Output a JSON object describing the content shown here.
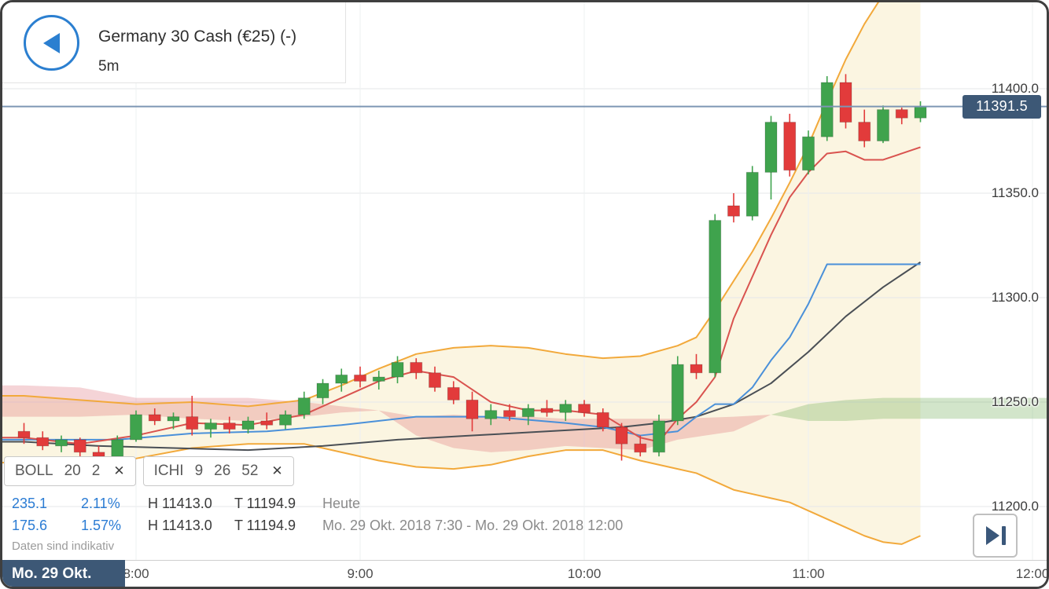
{
  "header": {
    "title": "Germany 30 Cash (€25) (-)",
    "timeframe": "5m"
  },
  "icons": {
    "back": "left-arrow",
    "close": "✕",
    "step_forward": "play-to-end"
  },
  "indicators": [
    {
      "name": "BOLL",
      "params": [
        "20",
        "2"
      ]
    },
    {
      "name": "ICHI",
      "params": [
        "9",
        "26",
        "52"
      ]
    }
  ],
  "stats": {
    "rows": [
      {
        "change": "235.1",
        "change_pct": "2.11%",
        "high": "H 11413.0",
        "low": "T 11194.9",
        "period": "Heute"
      },
      {
        "change": "175.6",
        "change_pct": "1.57%",
        "high": "H 11413.0",
        "low": "T 11194.9",
        "period": "Mo. 29 Okt. 2018 7:30 - Mo. 29 Okt. 2018 12:00"
      }
    ]
  },
  "disclaimer": "Daten sind indikativ",
  "time_axis": {
    "date_badge": "Mo. 29 Okt.",
    "labels": [
      {
        "text": "8:00",
        "minute": 480
      },
      {
        "text": "9:00",
        "minute": 540
      },
      {
        "text": "10:00",
        "minute": 600
      },
      {
        "text": "11:00",
        "minute": 660
      },
      {
        "text": "12:00",
        "minute": 720
      }
    ]
  },
  "price_axis": {
    "labels": [
      {
        "text": "11400.0",
        "price": 11400
      },
      {
        "text": "11350.0",
        "price": 11350
      },
      {
        "text": "11300.0",
        "price": 11300
      },
      {
        "text": "11250.0",
        "price": 11250
      },
      {
        "text": "11200.0",
        "price": 11200
      }
    ]
  },
  "colors": {
    "up": "#3fa34d",
    "down": "#e23b3b",
    "bollinger": "#f2a93b",
    "tenkan": "#d9534f",
    "kijun": "#4a90d9",
    "baseline": "#4a4f55",
    "cloud_bearish": "rgba(217,83,96,0.25)",
    "cloud_bullish": "rgba(106,168,79,0.30)",
    "band_fill": "rgba(248,236,200,0.55)",
    "price_line": "#7d96b4",
    "badge_bg": "#3d5876",
    "accent_blue": "#2b7fd0"
  },
  "chart_data": {
    "type": "candlestick",
    "title": "Germany 30 Cash (€25) 5m",
    "start_time": "7:30",
    "start_minute": 450,
    "interval_minutes": 5,
    "current_price": 11391.5,
    "x_ticks": [
      "8:00",
      "9:00",
      "10:00",
      "11:00",
      "12:00"
    ],
    "y_ticks": [
      11400,
      11350,
      11300,
      11250,
      11200
    ],
    "ylim": [
      11180,
      11410
    ],
    "grid": true,
    "candles": [
      [
        11236,
        11240,
        11230,
        11233
      ],
      [
        11233,
        11236,
        11227,
        11229
      ],
      [
        11229,
        11234,
        11226,
        11232
      ],
      [
        11232,
        11233,
        11224,
        11226
      ],
      [
        11226,
        11229,
        11221,
        11224
      ],
      [
        11224,
        11234,
        11223,
        11232
      ],
      [
        11232,
        11246,
        11231,
        11244
      ],
      [
        11244,
        11247,
        11239,
        11241
      ],
      [
        11241,
        11245,
        11237,
        11243
      ],
      [
        11243,
        11253,
        11234,
        11237
      ],
      [
        11237,
        11242,
        11233,
        11240
      ],
      [
        11240,
        11243,
        11235,
        11237
      ],
      [
        11237,
        11243,
        11235,
        11241
      ],
      [
        11241,
        11245,
        11237,
        11239
      ],
      [
        11239,
        11246,
        11237,
        11244
      ],
      [
        11244,
        11255,
        11242,
        11252
      ],
      [
        11252,
        11261,
        11249,
        11259
      ],
      [
        11259,
        11266,
        11255,
        11263
      ],
      [
        11263,
        11267,
        11257,
        11260
      ],
      [
        11260,
        11265,
        11256,
        11262
      ],
      [
        11262,
        11272,
        11259,
        11269
      ],
      [
        11269,
        11271,
        11261,
        11264
      ],
      [
        11264,
        11267,
        11255,
        11257
      ],
      [
        11257,
        11260,
        11249,
        11251
      ],
      [
        11251,
        11255,
        11236,
        11242
      ],
      [
        11242,
        11249,
        11239,
        11246
      ],
      [
        11246,
        11249,
        11241,
        11243
      ],
      [
        11243,
        11249,
        11239,
        11247
      ],
      [
        11247,
        11251,
        11243,
        11245
      ],
      [
        11245,
        11251,
        11241,
        11249
      ],
      [
        11249,
        11251,
        11243,
        11245
      ],
      [
        11245,
        11247,
        11236,
        11238
      ],
      [
        11238,
        11240,
        11222,
        11230
      ],
      [
        11230,
        11234,
        11224,
        11226
      ],
      [
        11226,
        11244,
        11224,
        11241
      ],
      [
        11241,
        11272,
        11239,
        11268
      ],
      [
        11268,
        11273,
        11261,
        11264
      ],
      [
        11264,
        11340,
        11262,
        11337
      ],
      [
        11344,
        11350,
        11336,
        11339
      ],
      [
        11339,
        11363,
        11337,
        11360
      ],
      [
        11360,
        11387,
        11347,
        11384
      ],
      [
        11384,
        11388,
        11358,
        11361
      ],
      [
        11361,
        11380,
        11359,
        11377
      ],
      [
        11377,
        11406,
        11375,
        11403
      ],
      [
        11403,
        11407,
        11381,
        11384
      ],
      [
        11384,
        11390,
        11372,
        11375
      ],
      [
        11375,
        11392,
        11374,
        11390
      ],
      [
        11390,
        11391,
        11383,
        11386
      ],
      [
        11386,
        11394,
        11384,
        11391.5
      ]
    ],
    "overlays": {
      "lines": [
        {
          "name": "bollinger-upper",
          "color_key": "bollinger",
          "width": 2,
          "extend_left": true,
          "points": [
            [
              0,
              11253
            ],
            [
              3,
              11251
            ],
            [
              6,
              11249
            ],
            [
              9,
              11250
            ],
            [
              12,
              11248
            ],
            [
              15,
              11251
            ],
            [
              17,
              11258
            ],
            [
              19,
              11266
            ],
            [
              21,
              11273
            ],
            [
              23,
              11276
            ],
            [
              25,
              11277
            ],
            [
              27,
              11276
            ],
            [
              29,
              11273
            ],
            [
              31,
              11271
            ],
            [
              33,
              11272
            ],
            [
              35,
              11277
            ],
            [
              36,
              11281
            ],
            [
              37,
              11294
            ],
            [
              38,
              11308
            ],
            [
              39,
              11322
            ],
            [
              40,
              11338
            ],
            [
              41,
              11355
            ],
            [
              42,
              11373
            ],
            [
              43,
              11394
            ],
            [
              44,
              11414
            ],
            [
              45,
              11431
            ],
            [
              46,
              11445
            ],
            [
              47,
              11456
            ],
            [
              48,
              11464
            ]
          ]
        },
        {
          "name": "bollinger-lower",
          "color_key": "bollinger",
          "width": 2,
          "extend_left": true,
          "points": [
            [
              0,
              11221
            ],
            [
              3,
              11220
            ],
            [
              6,
              11223
            ],
            [
              9,
              11228
            ],
            [
              12,
              11230
            ],
            [
              15,
              11230
            ],
            [
              17,
              11226
            ],
            [
              19,
              11222
            ],
            [
              21,
              11219
            ],
            [
              23,
              11218
            ],
            [
              25,
              11220
            ],
            [
              27,
              11224
            ],
            [
              29,
              11227
            ],
            [
              31,
              11227
            ],
            [
              33,
              11222
            ],
            [
              35,
              11218
            ],
            [
              36,
              11216
            ],
            [
              37,
              11212
            ],
            [
              38,
              11208
            ],
            [
              39,
              11206
            ],
            [
              40,
              11204
            ],
            [
              41,
              11202
            ],
            [
              42,
              11198
            ],
            [
              43,
              11194
            ],
            [
              44,
              11190
            ],
            [
              45,
              11186
            ],
            [
              46,
              11183
            ],
            [
              47,
              11182
            ],
            [
              48,
              11186
            ]
          ]
        },
        {
          "name": "ichimoku-baseline",
          "color_key": "baseline",
          "width": 2,
          "extend_left": true,
          "points": [
            [
              0,
              11231
            ],
            [
              4,
              11229
            ],
            [
              8,
              11228
            ],
            [
              12,
              11227
            ],
            [
              16,
              11229
            ],
            [
              20,
              11232
            ],
            [
              24,
              11234
            ],
            [
              28,
              11236
            ],
            [
              32,
              11238
            ],
            [
              34,
              11240
            ],
            [
              36,
              11243
            ],
            [
              38,
              11249
            ],
            [
              40,
              11259
            ],
            [
              42,
              11274
            ],
            [
              44,
              11291
            ],
            [
              46,
              11305
            ],
            [
              48,
              11317
            ]
          ]
        },
        {
          "name": "ichimoku-kijun",
          "color_key": "kijun",
          "width": 2,
          "extend_left": true,
          "points": [
            [
              0,
              11232
            ],
            [
              5,
              11232
            ],
            [
              9,
              11235
            ],
            [
              13,
              11236
            ],
            [
              17,
              11239
            ],
            [
              21,
              11243
            ],
            [
              25,
              11243
            ],
            [
              29,
              11240
            ],
            [
              31,
              11238
            ],
            [
              33,
              11234
            ],
            [
              35,
              11236
            ],
            [
              36,
              11243
            ],
            [
              37,
              11249
            ],
            [
              38,
              11249
            ],
            [
              39,
              11257
            ],
            [
              40,
              11270
            ],
            [
              41,
              11281
            ],
            [
              42,
              11297
            ],
            [
              43,
              11316
            ],
            [
              48,
              11316
            ]
          ]
        },
        {
          "name": "ichimoku-tenkan",
          "color_key": "tenkan",
          "width": 2,
          "extend_left": true,
          "points": [
            [
              0,
              11233
            ],
            [
              3,
              11230
            ],
            [
              6,
              11234
            ],
            [
              9,
              11240
            ],
            [
              12,
              11239
            ],
            [
              15,
              11244
            ],
            [
              17,
              11252
            ],
            [
              19,
              11260
            ],
            [
              21,
              11265
            ],
            [
              23,
              11262
            ],
            [
              25,
              11250
            ],
            [
              27,
              11246
            ],
            [
              29,
              11246
            ],
            [
              31,
              11244
            ],
            [
              33,
              11233
            ],
            [
              34,
              11231
            ],
            [
              35,
              11242
            ],
            [
              36,
              11250
            ],
            [
              37,
              11262
            ],
            [
              38,
              11290
            ],
            [
              39,
              11310
            ],
            [
              40,
              11330
            ],
            [
              41,
              11348
            ],
            [
              42,
              11360
            ],
            [
              43,
              11369
            ],
            [
              44,
              11370
            ],
            [
              45,
              11366
            ],
            [
              46,
              11366
            ],
            [
              47,
              11369
            ],
            [
              48,
              11372
            ]
          ]
        }
      ],
      "clouds": [
        {
          "name": "ichimoku-cloud-bearish-early",
          "color_key": "cloud_bearish",
          "extend_left": true,
          "upper": [
            [
              0,
              11258
            ],
            [
              3,
              11257
            ],
            [
              6,
              11252
            ],
            [
              9,
              11252
            ],
            [
              12,
              11252
            ],
            [
              15,
              11250
            ],
            [
              17,
              11248
            ],
            [
              19,
              11246
            ]
          ],
          "lower": [
            [
              0,
              11243
            ],
            [
              3,
              11243
            ],
            [
              6,
              11244
            ],
            [
              9,
              11242
            ],
            [
              12,
              11241
            ],
            [
              15,
              11243
            ],
            [
              17,
              11245
            ],
            [
              19,
              11246
            ]
          ]
        },
        {
          "name": "ichimoku-cloud-bearish-mid",
          "color_key": "cloud_bearish",
          "upper": [
            [
              19,
              11246
            ],
            [
              21,
              11243
            ],
            [
              23,
              11244
            ],
            [
              25,
              11243
            ],
            [
              27,
              11243
            ],
            [
              29,
              11242
            ],
            [
              31,
              11242
            ],
            [
              33,
              11242
            ],
            [
              35,
              11242
            ],
            [
              38,
              11243
            ],
            [
              40,
              11244
            ]
          ],
          "lower": [
            [
              19,
              11246
            ],
            [
              21,
              11234
            ],
            [
              23,
              11228
            ],
            [
              25,
              11226
            ],
            [
              27,
              11227
            ],
            [
              29,
              11229
            ],
            [
              31,
              11228
            ],
            [
              33,
              11227
            ],
            [
              35,
              11232
            ],
            [
              38,
              11236
            ],
            [
              40,
              11244
            ]
          ]
        },
        {
          "name": "ichimoku-cloud-bullish-projected",
          "color_key": "cloud_bullish",
          "extend_right": true,
          "upper": [
            [
              40,
              11244
            ],
            [
              42,
              11249
            ],
            [
              44,
              11251
            ],
            [
              46,
              11252
            ],
            [
              50,
              11252
            ],
            [
              57,
              11252
            ]
          ],
          "lower": [
            [
              40,
              11244
            ],
            [
              42,
              11241
            ],
            [
              44,
              11241
            ],
            [
              46,
              11242
            ],
            [
              50,
              11242
            ],
            [
              57,
              11242
            ]
          ]
        }
      ]
    }
  }
}
